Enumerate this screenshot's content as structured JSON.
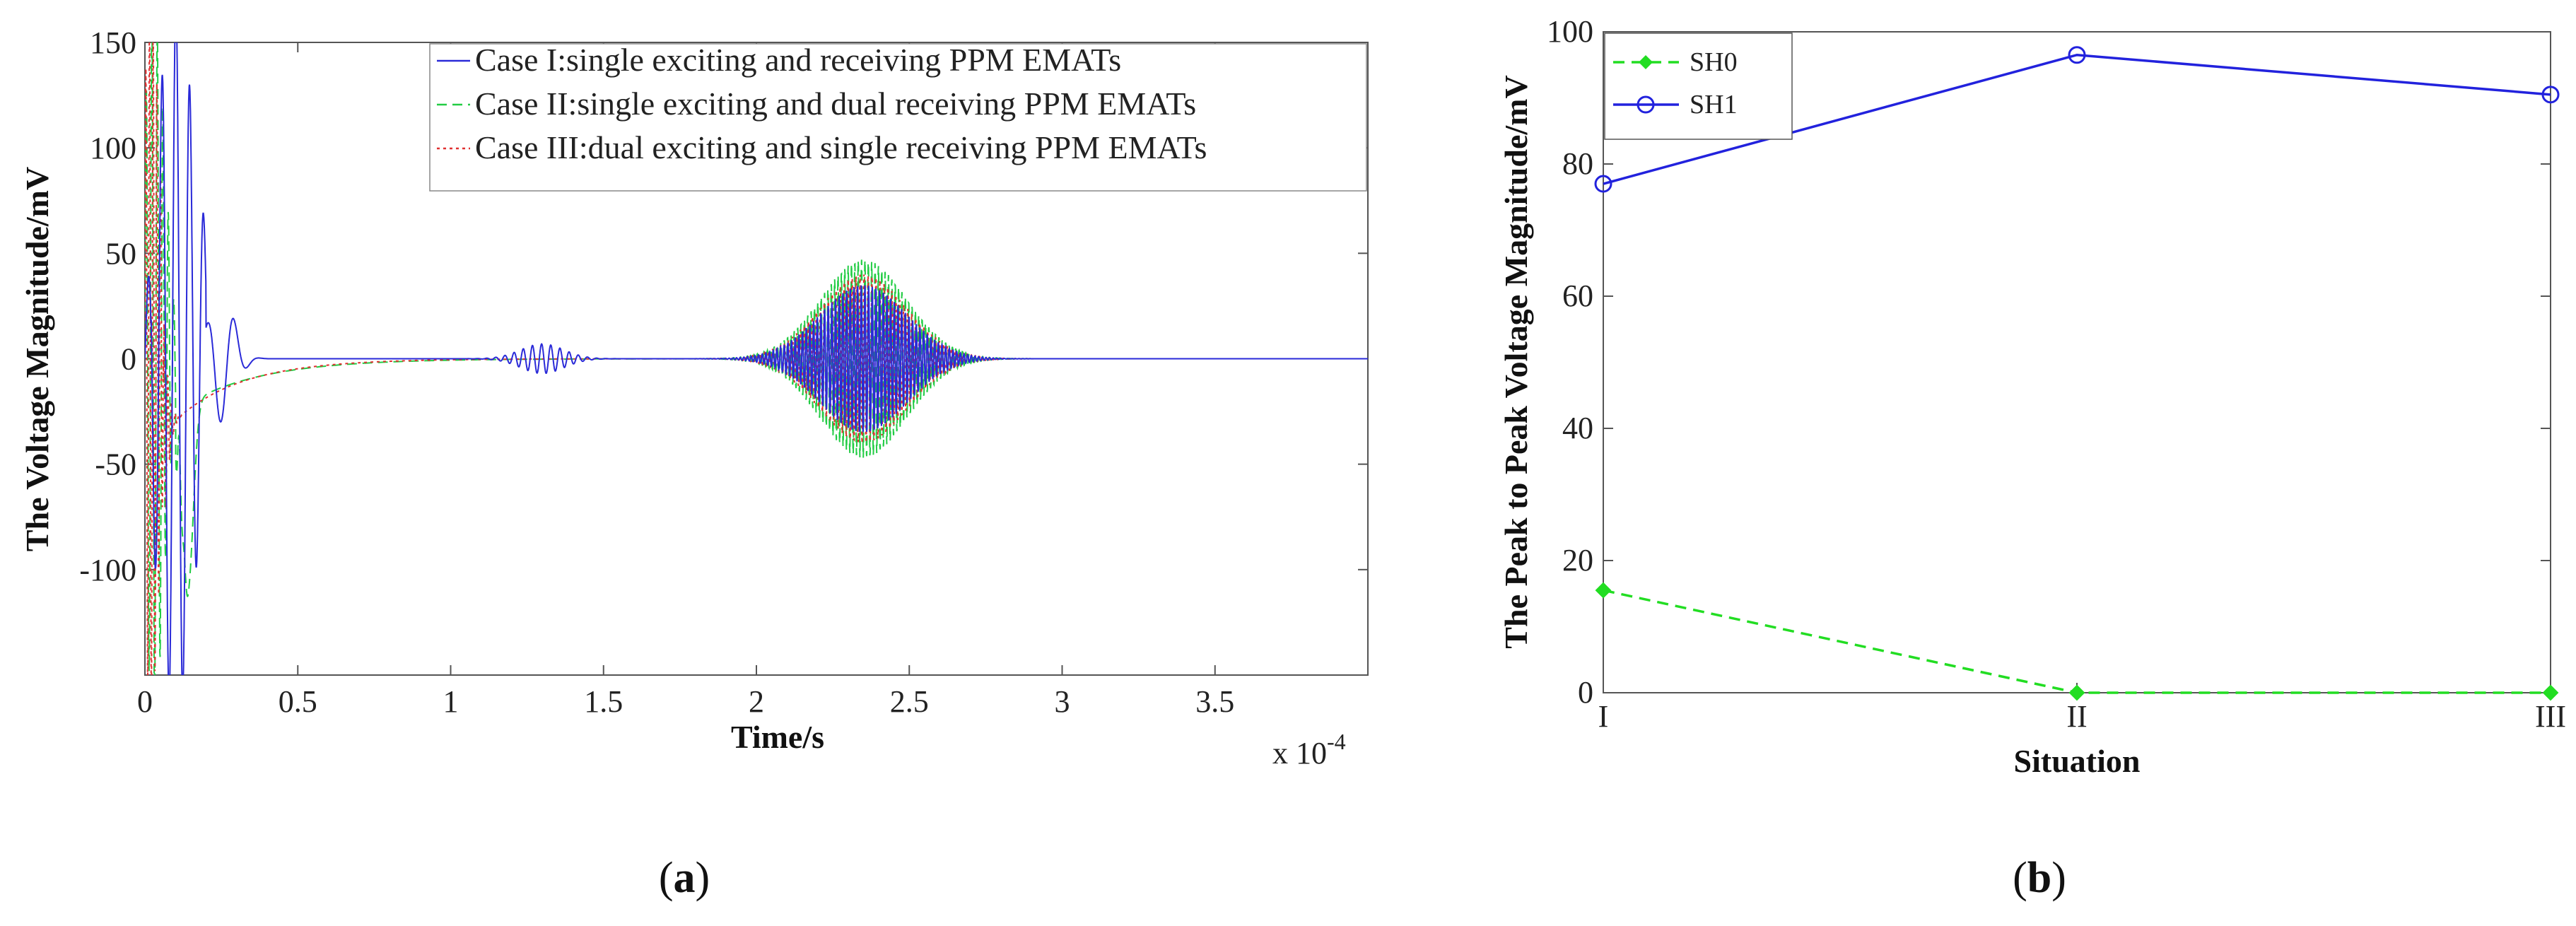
{
  "panel_labels": {
    "a": {
      "open": "(",
      "letter": "a",
      "close": ")"
    },
    "b": {
      "open": "(",
      "letter": "b",
      "close": ")"
    }
  },
  "chart_data": [
    {
      "type": "line",
      "xlabel": "Time/s",
      "ylabel": "The Voltage Magnitude/mV",
      "x_multiplier": "x 10",
      "x_multiplier_exponent": "-4",
      "xlim": [
        0,
        4.0
      ],
      "ylim": [
        -150,
        150
      ],
      "x_ticks": [
        "0",
        "0.5",
        "1",
        "1.5",
        "2",
        "2.5",
        "3",
        "3.5"
      ],
      "y_ticks": [
        "150",
        "100",
        "50",
        "0",
        "-50",
        "-100"
      ],
      "y_tick_values": [
        150,
        100,
        50,
        0,
        -50,
        -100
      ],
      "x_tick_values": [
        0,
        0.5,
        1,
        1.5,
        2,
        2.5,
        3,
        3.5
      ],
      "legend_position": "top-right",
      "series": [
        {
          "name": "Case I:single exciting and receiving PPM EMATs",
          "color": "#2a2ad8",
          "style": "solid",
          "packets": [
            {
              "center": 1.3,
              "width": 0.1,
              "amplitude": 7
            },
            {
              "center": 2.35,
              "width": 0.2,
              "amplitude": 35
            }
          ]
        },
        {
          "name": "Case II:single exciting and dual receiving PPM EMATs",
          "color": "#22cc44",
          "style": "dashed",
          "packets": [
            {
              "center": 2.35,
              "width": 0.2,
              "amplitude": 47
            }
          ]
        },
        {
          "name": "Case III:dual exciting and single receiving PPM EMATs",
          "color": "#e03030",
          "style": "dotted",
          "packets": [
            {
              "center": 2.35,
              "width": 0.2,
              "amplitude": 40
            }
          ]
        }
      ]
    },
    {
      "type": "line",
      "xlabel": "Situation",
      "ylabel": "The Peak to Peak Voltage Magnitude/mV",
      "categories": [
        "I",
        "II",
        "III"
      ],
      "ylim": [
        0,
        100
      ],
      "y_ticks": [
        "100",
        "80",
        "60",
        "40",
        "20",
        "0"
      ],
      "y_tick_values": [
        100,
        80,
        60,
        40,
        20,
        0
      ],
      "legend_position": "top-left",
      "series": [
        {
          "name": "SH0",
          "color": "#22dd22",
          "style": "dashed",
          "marker": "diamond",
          "values": [
            15.5,
            0,
            0
          ]
        },
        {
          "name": "SH1",
          "color": "#2222dd",
          "style": "solid",
          "marker": "circle",
          "values": [
            77,
            96.5,
            90.5
          ]
        }
      ]
    }
  ]
}
